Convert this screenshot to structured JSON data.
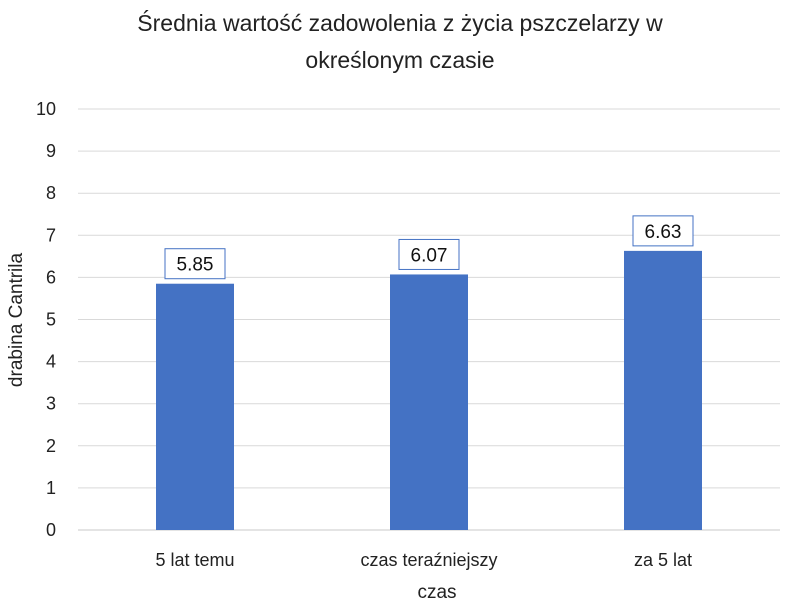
{
  "chart_data": {
    "type": "bar",
    "title_lines": [
      "Średnia wartość zadowolenia z życia pszczelarzy w",
      "określonym czasie"
    ],
    "categories": [
      "5 lat temu",
      "czas teraźniejszy",
      "za 5 lat"
    ],
    "values": [
      5.85,
      6.07,
      6.63
    ],
    "value_labels": [
      "5.85",
      "6.07",
      "6.63"
    ],
    "xlabel": "czas",
    "ylabel": "drabina Cantrila",
    "ylim": [
      0,
      10
    ],
    "yticks": [
      "0",
      "1",
      "2",
      "3",
      "4",
      "5",
      "6",
      "7",
      "8",
      "9",
      "10"
    ],
    "grid": true,
    "legend": "none",
    "bar_color": "#4472c4"
  }
}
